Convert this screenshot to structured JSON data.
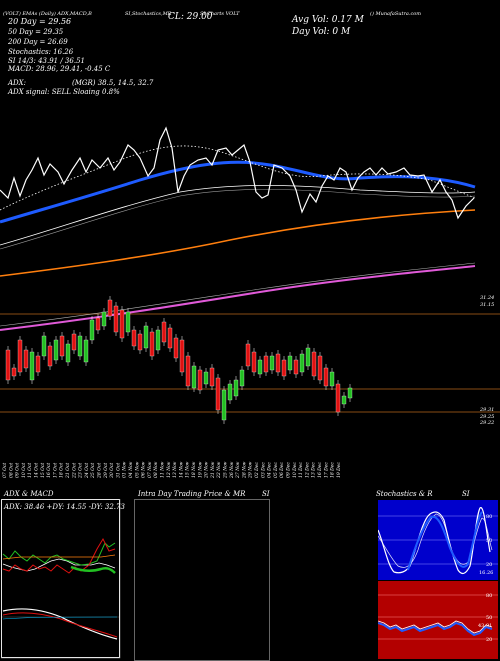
{
  "header": {
    "line1_left": "(VOLT) EMAs (Daily) ADX,MACD,B",
    "line1_mid": "SI,Stochastics,MR",
    "line1_right": "SI Charts VOLT",
    "line1_far": "() MunafaSutra.com",
    "cl_label": "CL: 29.00",
    "ema20": "20 Day = 29.56",
    "ema50": "50 Day = 29.35",
    "ema200": "200 Day = 26.69",
    "stochastics": "Stochastics: 16.26",
    "si": "SI 14/3: 43.91 / 36.51",
    "macd": "MACD: 28.96, 29.41, -0.45 C",
    "adx_label": "ADX:",
    "adx_values": "(MGR) 38.5, 14.5, 32.7",
    "adx_signal": "ADX signal: SELL Sloaing 0.8%",
    "avg_vol": "Avg Vol: 0.17 M",
    "day_vol": "Day Vol: 0  M"
  },
  "price_axis": {
    "labels": [
      "31.24",
      "31.15",
      "29.31",
      "29.25",
      "29.22"
    ]
  },
  "dates": [
    "07 Oct",
    "08 Oct",
    "09 Oct",
    "10 Oct",
    "11 Oct",
    "14 Oct",
    "15 Oct",
    "16 Oct",
    "17 Oct",
    "18 Oct",
    "21 Oct",
    "22 Oct",
    "23 Oct",
    "24 Oct",
    "25 Oct",
    "28 Oct",
    "29 Oct",
    "30 Oct",
    "31 Oct",
    "01 Nov",
    "04 Nov",
    "05 Nov",
    "06 Nov",
    "07 Nov",
    "08 Nov",
    "11 Nov",
    "12 Nov",
    "13 Nov",
    "14 Nov",
    "15 Nov",
    "18 Nov",
    "19 Nov",
    "20 Nov",
    "21 Nov",
    "22 Nov",
    "25 Nov",
    "26 Nov",
    "27 Nov",
    "28 Nov",
    "29 Nov",
    "02 Dec",
    "03 Dec",
    "04 Dec",
    "05 Dec",
    "06 Dec",
    "09 Dec",
    "10 Dec",
    "11 Dec",
    "12 Dec",
    "13 Dec",
    "16 Dec",
    "17 Dec",
    "18 Dec",
    "19 Dec"
  ],
  "panels": {
    "adx_macd": {
      "title": "ADX  & MACD",
      "adx_readout": "ADX: 38.46  +DY: 14.55  -DY: 32.73"
    },
    "intraday": {
      "title": "Intra  Day Trading Price  & MR",
      "title_right": "SI"
    },
    "stochastics": {
      "title": "Stochastics & R",
      "title_right": "SI",
      "levels": [
        "80",
        "50",
        "20"
      ],
      "value_label": "16.26",
      "si_levels": [
        "80",
        "50",
        "20"
      ],
      "si_value": "43.91"
    }
  },
  "colors": {
    "ema20": "#1e5bff",
    "ema50": "#ffffff",
    "ema200": "#ff7f0e",
    "magenta": "#e05ad8",
    "bull": "#22c022",
    "bear": "#e01010",
    "hline": "#b5651d",
    "stoch_bg": "#0000cc",
    "si_bg": "#b30000"
  }
}
